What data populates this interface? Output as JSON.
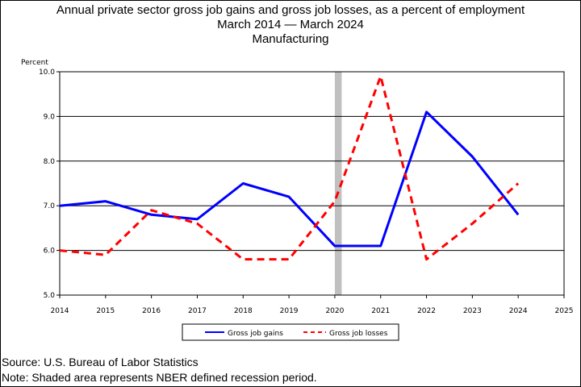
{
  "chart_data": {
    "type": "line",
    "title": "Annual private sector gross job gains and gross job losses, as a percent of employment",
    "subtitle": "March 2014 — March 2024",
    "subtitle2": "Manufacturing",
    "ylabel": "Percent",
    "xlabel": "",
    "xlim": [
      2014,
      2025
    ],
    "ylim": [
      5.0,
      10.0
    ],
    "x_ticks": [
      "2014",
      "2015",
      "2016",
      "2017",
      "2018",
      "2019",
      "2020",
      "2021",
      "2022",
      "2023",
      "2024",
      "2025"
    ],
    "y_ticks": [
      "5.0",
      "6.0",
      "7.0",
      "8.0",
      "9.0",
      "10.0"
    ],
    "grid": "horizontal",
    "recession": {
      "start": 2020.0,
      "end": 2020.15
    },
    "x": [
      2014,
      2015,
      2016,
      2017,
      2018,
      2019,
      2020,
      2021,
      2022,
      2023,
      2024
    ],
    "series": [
      {
        "name": "Gross job gains",
        "color": "#0000ff",
        "dash": "solid",
        "values": [
          7.0,
          7.1,
          6.8,
          6.7,
          7.5,
          7.2,
          6.1,
          6.1,
          9.1,
          8.1,
          6.8
        ]
      },
      {
        "name": "Gross job losses",
        "color": "#ff0000",
        "dash": "dashed",
        "values": [
          6.0,
          5.9,
          6.9,
          6.6,
          5.8,
          5.8,
          7.1,
          9.9,
          5.8,
          6.6,
          7.5
        ]
      }
    ],
    "legend_position": "bottom-center"
  },
  "footer": {
    "source": "Source: U.S. Bureau of Labor Statistics",
    "note": "Note: Shaded area represents NBER defined recession period."
  }
}
